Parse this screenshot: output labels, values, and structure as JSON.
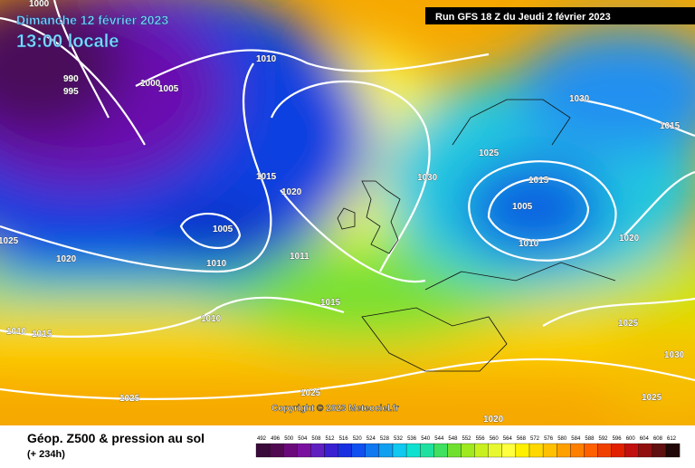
{
  "header": {
    "date": "Dimanche 12 février 2023",
    "time": "13:00 locale",
    "run": "Run GFS 18 Z du Jeudi 2 février 2023"
  },
  "isobar_labels": [
    "1000",
    "990",
    "995",
    "1000",
    "1005",
    "1010",
    "1015",
    "1020",
    "1030",
    "1025",
    "1030",
    "1015",
    "1015",
    "1005",
    "1010",
    "1020",
    "1005",
    "1025",
    "1020",
    "1010",
    "1011",
    "1015",
    "1010",
    "1010",
    "1015",
    "1025",
    "1030",
    "1025",
    "1025",
    "1025",
    "1020"
  ],
  "copyright": "Copyright © 2023 Meteociel.fr",
  "legend": {
    "title": "Géop. Z500 & pression au sol",
    "subtitle": "(+ 234h)",
    "scale": [
      "492",
      "496",
      "500",
      "504",
      "508",
      "512",
      "516",
      "520",
      "524",
      "528",
      "532",
      "536",
      "540",
      "544",
      "548",
      "552",
      "556",
      "560",
      "564",
      "568",
      "572",
      "576",
      "580",
      "584",
      "588",
      "592",
      "596",
      "600",
      "604",
      "608",
      "612"
    ]
  }
}
